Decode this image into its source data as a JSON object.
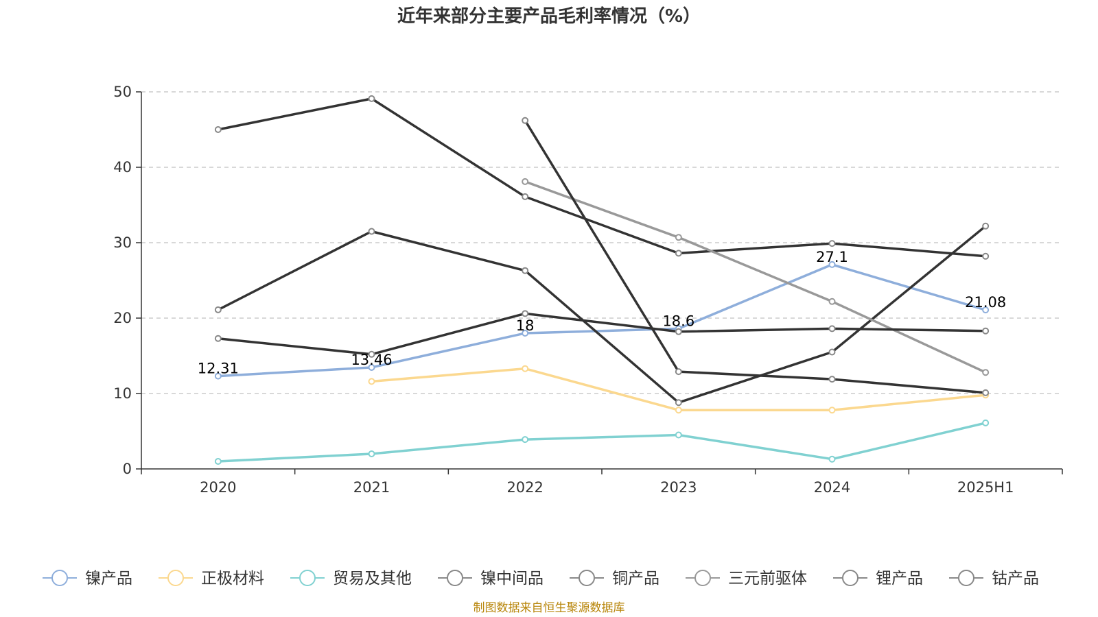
{
  "chart_data": {
    "type": "line",
    "title": "近年来部分主要产品毛利率情况（%）",
    "categories": [
      "2020",
      "2021",
      "2022",
      "2023",
      "2024",
      "2025H1"
    ],
    "ylim": [
      0,
      50
    ],
    "yticks": [
      0,
      10,
      20,
      30,
      40,
      50
    ],
    "grid": "horizontal dashed",
    "legend_position": "bottom",
    "series": [
      {
        "name": "镍产品",
        "color": "#8eaedb",
        "values": [
          12.31,
          13.46,
          18,
          18.6,
          27.1,
          21.08
        ],
        "labels": [
          "12.31",
          "13.46",
          "18",
          "18.6",
          "27.1",
          "21.08"
        ]
      },
      {
        "name": "正极材料",
        "color": "#fbd88f",
        "values": [
          null,
          11.6,
          13.3,
          7.8,
          7.8,
          9.8
        ]
      },
      {
        "name": "贸易及其他",
        "color": "#80d1d1",
        "values": [
          1.0,
          2.0,
          3.9,
          4.5,
          1.3,
          6.1
        ]
      },
      {
        "name": "镍中间品",
        "color": "#333333",
        "values": [
          45.0,
          49.1,
          36.1,
          28.6,
          29.9,
          28.2
        ]
      },
      {
        "name": "铜产品",
        "color": "#333333",
        "values": [
          21.1,
          31.5,
          26.3,
          8.8,
          15.5,
          32.2
        ]
      },
      {
        "name": "三元前驱体",
        "color": "#999999",
        "values": [
          null,
          null,
          38.1,
          30.7,
          22.2,
          12.8
        ]
      },
      {
        "name": "锂产品",
        "color": "#333333",
        "values": [
          null,
          null,
          46.2,
          12.9,
          11.9,
          10.1
        ]
      },
      {
        "name": "钴产品",
        "color": "#333333",
        "values": [
          17.3,
          15.2,
          20.6,
          18.2,
          18.6,
          18.3
        ]
      }
    ]
  },
  "source": "制图数据来自恒生聚源数据库"
}
